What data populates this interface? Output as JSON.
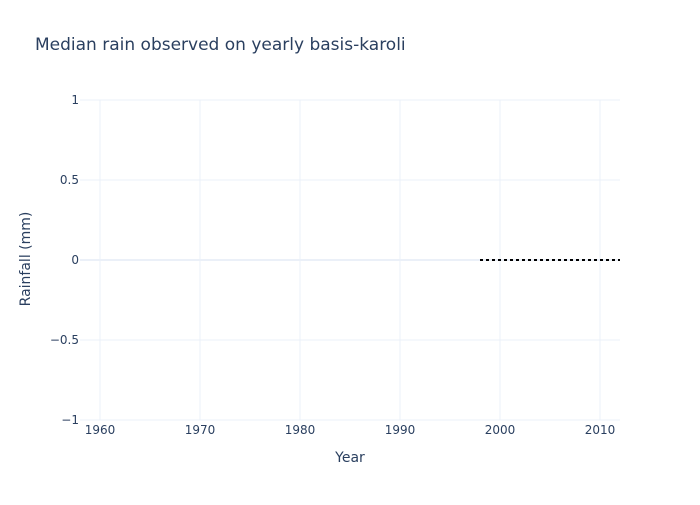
{
  "chart_data": {
    "type": "line",
    "title": "Median rain observed on yearly basis-karoli",
    "xlabel": "Year",
    "ylabel": "Rainfall (mm)",
    "xlim": [
      1958,
      2012
    ],
    "ylim": [
      -1,
      1
    ],
    "x_ticks": [
      1960,
      1970,
      1980,
      1990,
      2000,
      2010
    ],
    "x_tick_labels": [
      "1960",
      "1970",
      "1980",
      "1990",
      "2000",
      "2010"
    ],
    "y_ticks": [
      -1,
      -0.5,
      0,
      0.5,
      1
    ],
    "y_tick_labels": [
      "−1",
      "−0.5",
      "0",
      "0.5",
      "1"
    ],
    "grid": true,
    "series": [
      {
        "x": [
          1998,
          2012
        ],
        "values": [
          0,
          0
        ],
        "color": "#000000",
        "line_style": "dotted"
      }
    ]
  }
}
